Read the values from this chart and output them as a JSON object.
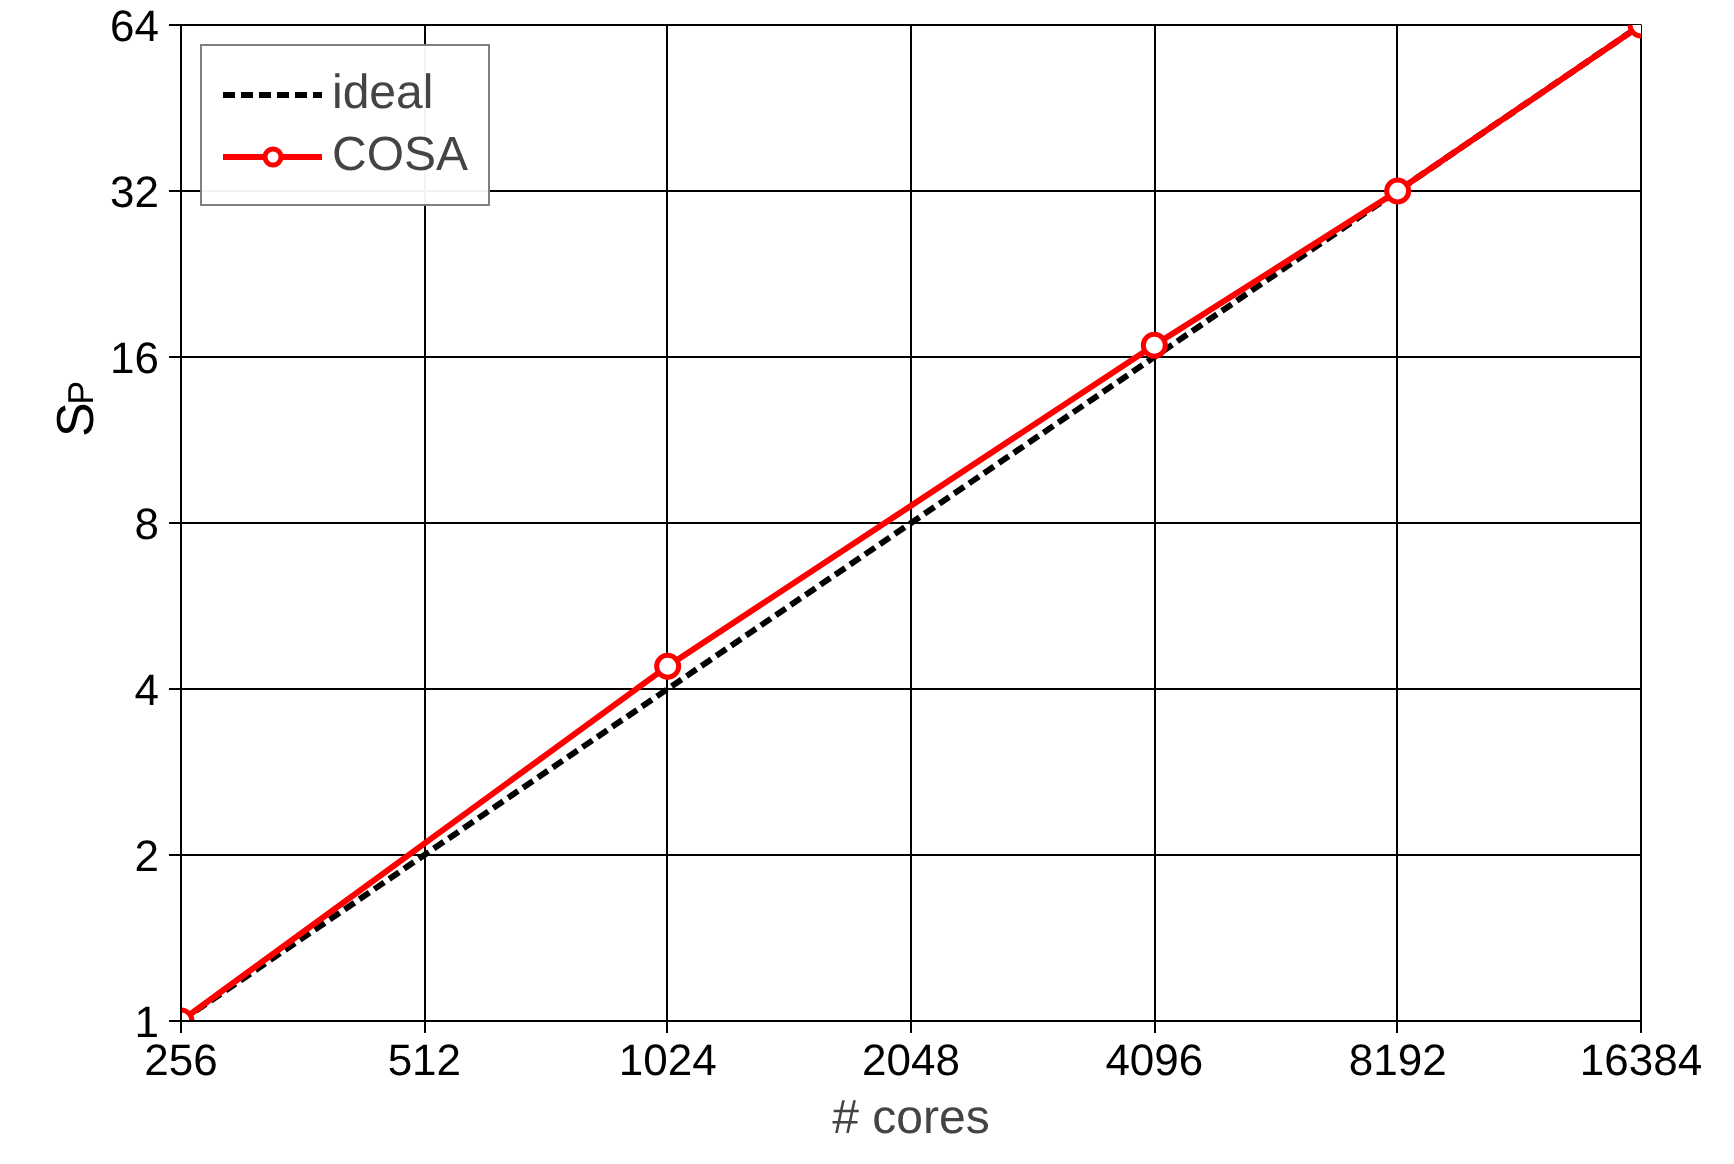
{
  "chart_data": {
    "type": "line",
    "xlabel": "# cores",
    "ylabel": "S$_{P}$",
    "log": "xy",
    "x": [
      256,
      1024,
      4096,
      8192,
      16384
    ],
    "xlim": [
      256,
      16384
    ],
    "ylim": [
      1,
      64
    ],
    "xticks": [
      256,
      512,
      1024,
      2048,
      4096,
      8192,
      16384
    ],
    "yticks": [
      1,
      2,
      4,
      8,
      16,
      32,
      64
    ],
    "grid": true,
    "legend": "top left",
    "series": [
      {
        "name": "ideal",
        "color": "#000000",
        "x": [
          256,
          16384
        ],
        "values": [
          1,
          64
        ],
        "line_style": "dashed",
        "marker": "none"
      },
      {
        "name": "COSA",
        "color": "#ff0000",
        "values": [
          1,
          4.4,
          16.8,
          32,
          64
        ],
        "line_style": "solid",
        "marker": "circle"
      }
    ]
  }
}
